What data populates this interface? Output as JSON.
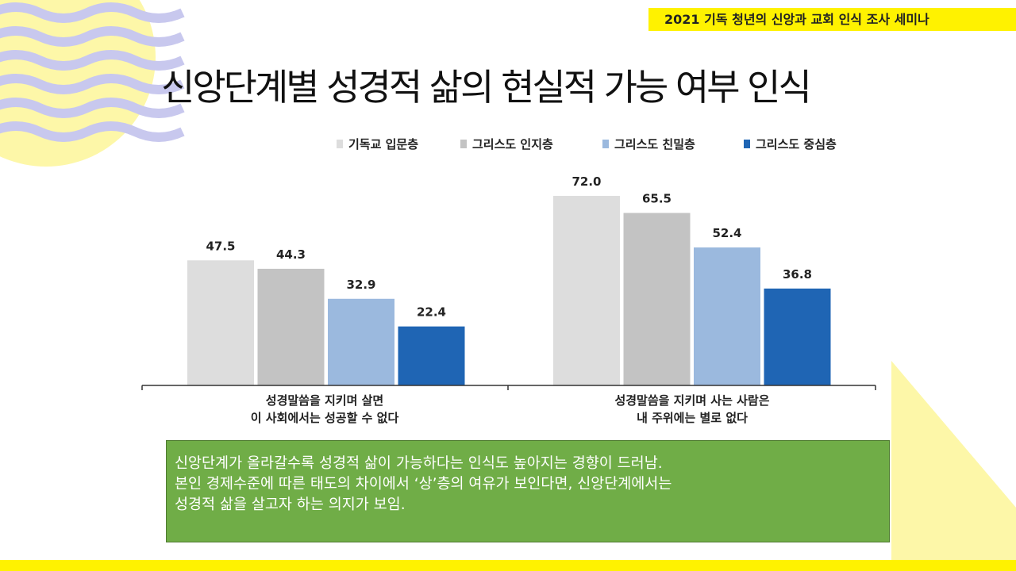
{
  "header": {
    "banner": "2021 기독 청년의 신앙과 교회 인식 조사 세미나",
    "title": "신앙단계별 성경적 삶의 현실적 가능 여부 인식"
  },
  "colors": {
    "banner_yellow": "#fff200",
    "summary_green": "#70ad47",
    "wave_purple": "#c8c8ee",
    "deco_yellow": "#fdf7a8"
  },
  "chart_data": {
    "type": "bar",
    "title": "",
    "xlabel": "",
    "ylabel": "",
    "ylim": [
      0,
      80
    ],
    "grid": false,
    "legend_position": "top",
    "categories": [
      [
        "성경말씀을 지키며 살면",
        "이 사회에서는 성공할 수 없다"
      ],
      [
        "성경말씀을 지키며 사는 사람은",
        "내 주위에는 별로 없다"
      ]
    ],
    "series": [
      {
        "name": "기독교 입문층",
        "color": "#dddddd",
        "values": [
          47.5,
          72.0
        ]
      },
      {
        "name": "그리스도 인지층",
        "color": "#c3c3c3",
        "values": [
          44.3,
          65.5
        ]
      },
      {
        "name": "그리스도 친밀층",
        "color": "#9bb9de",
        "values": [
          32.9,
          52.4
        ]
      },
      {
        "name": "그리스도 중심층",
        "color": "#1f65b4",
        "values": [
          22.4,
          36.8
        ]
      }
    ]
  },
  "summary": {
    "lines": [
      "신앙단계가 올라갈수록 성경적 삶이 가능하다는 인식도 높아지는 경향이 드러남.",
      "본인 경제수준에 따른 태도의 차이에서 ‘상’층의 여유가 보인다면, 신앙단계에서는",
      "성경적 삶을 살고자 하는 의지가 보임."
    ]
  }
}
